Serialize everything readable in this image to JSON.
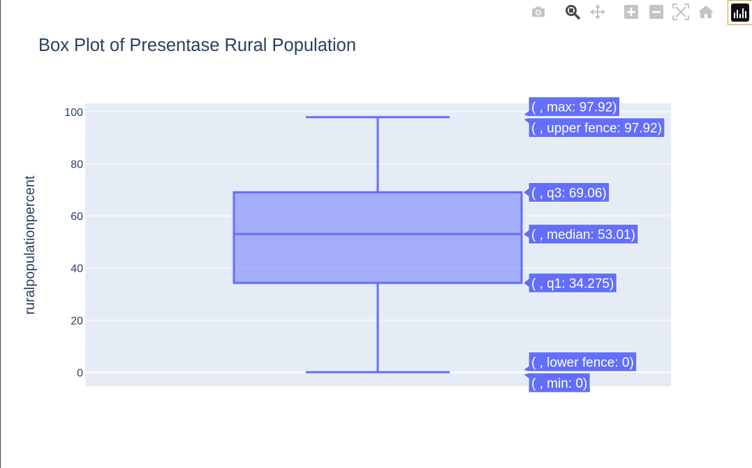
{
  "modebar": {
    "buttons": [
      {
        "name": "camera-icon",
        "title": "Download plot as a png"
      },
      {
        "name": "zoom-icon",
        "title": "Zoom"
      },
      {
        "name": "pan-icon",
        "title": "Pan"
      },
      {
        "name": "zoom-in-icon",
        "title": "Zoom in"
      },
      {
        "name": "zoom-out-icon",
        "title": "Zoom out"
      },
      {
        "name": "autoscale-icon",
        "title": "Autoscale"
      },
      {
        "name": "reset-axes-icon",
        "title": "Reset axes"
      }
    ],
    "active": "zoom-icon",
    "logo": "plotly-logo-icon"
  },
  "chart_data": {
    "type": "box",
    "title": "Box Plot of Presentase Rural Population",
    "ylabel": "ruralpopulationpercent",
    "ylim": [
      -5.4,
      103.2
    ],
    "yticks": [
      0,
      20,
      40,
      60,
      80,
      100
    ],
    "grid": true,
    "stats": {
      "min": 0,
      "lower_fence": 0,
      "q1": 34.275,
      "median": 53.01,
      "q3": 69.06,
      "upper_fence": 97.92,
      "max": 97.92
    },
    "hover_labels": [
      {
        "key": "max",
        "text": "( , max: 97.92)"
      },
      {
        "key": "upper_fence",
        "text": "( , upper fence: 97.92)"
      },
      {
        "key": "q3",
        "text": "( , q3: 69.06)"
      },
      {
        "key": "median",
        "text": "( , median: 53.01)"
      },
      {
        "key": "q1",
        "text": "( , q1: 34.275)"
      },
      {
        "key": "lower_fence",
        "text": "( , lower fence: 0)"
      },
      {
        "key": "min",
        "text": "( , min: 0)"
      }
    ],
    "colors": {
      "box_line": "#636efa",
      "box_fill": "rgba(99,110,250,0.5)",
      "plot_bg": "#e5ecf6",
      "grid": "#ffffff",
      "text": "#2a3f5f",
      "modebar_icon": "#c4c4c4",
      "modebar_active": "#4a4a4a"
    }
  }
}
